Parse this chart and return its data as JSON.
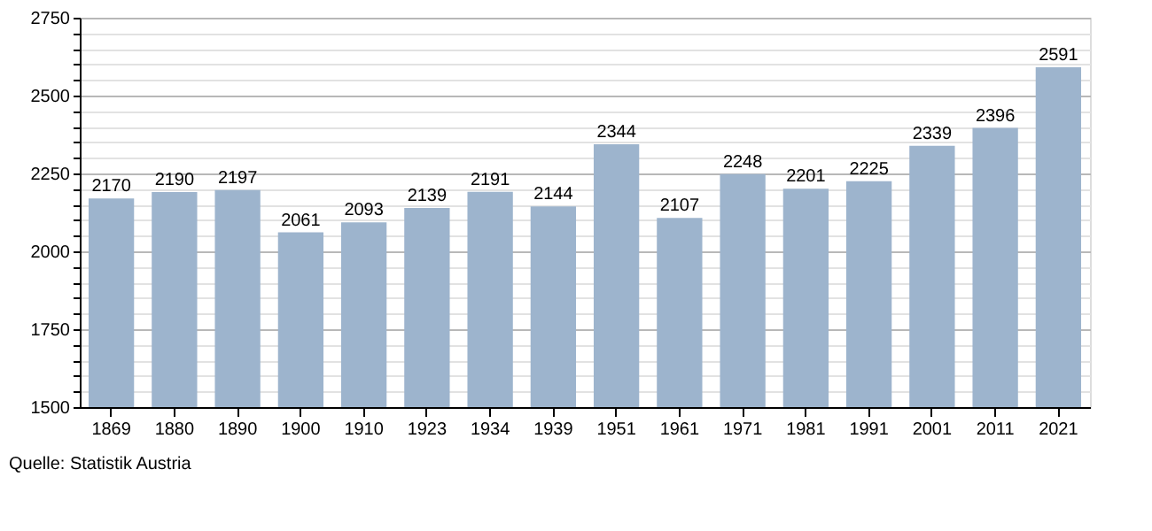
{
  "chart_data": {
    "type": "bar",
    "categories": [
      "1869",
      "1880",
      "1890",
      "1900",
      "1910",
      "1923",
      "1934",
      "1939",
      "1951",
      "1961",
      "1971",
      "1981",
      "1991",
      "2001",
      "2011",
      "2021"
    ],
    "values": [
      2170,
      2190,
      2197,
      2061,
      2093,
      2139,
      2191,
      2144,
      2344,
      2107,
      2248,
      2201,
      2225,
      2339,
      2396,
      2591
    ],
    "color": "#9db4cd",
    "data_labels": true,
    "grid": "y",
    "ylim": [
      1500,
      2750
    ],
    "yticks": [
      1500,
      {
        "value": 1550,
        "label": null
      },
      {
        "value": 1600,
        "label": null
      },
      {
        "value": 1650,
        "label": null
      },
      {
        "value": 1700,
        "label": null
      },
      1750,
      {
        "value": 1800,
        "label": null
      },
      {
        "value": 1850,
        "label": null
      },
      {
        "value": 1900,
        "label": null
      },
      {
        "value": 1950,
        "label": null
      },
      2000,
      {
        "value": 2050,
        "label": null
      },
      {
        "value": 2100,
        "label": null
      },
      {
        "value": 2150,
        "label": null
      },
      {
        "value": 2200,
        "label": null
      },
      2250,
      {
        "value": 2300,
        "label": null
      },
      {
        "value": 2350,
        "label": null
      },
      {
        "value": 2400,
        "label": null
      },
      {
        "value": 2450,
        "label": null
      },
      2500,
      {
        "value": 2550,
        "label": null
      },
      {
        "value": 2600,
        "label": null
      },
      {
        "value": 2650,
        "label": null
      },
      {
        "value": 2700,
        "label": null
      },
      2750
    ],
    "annotations": [
      "Quelle: Statistik Austria"
    ]
  }
}
